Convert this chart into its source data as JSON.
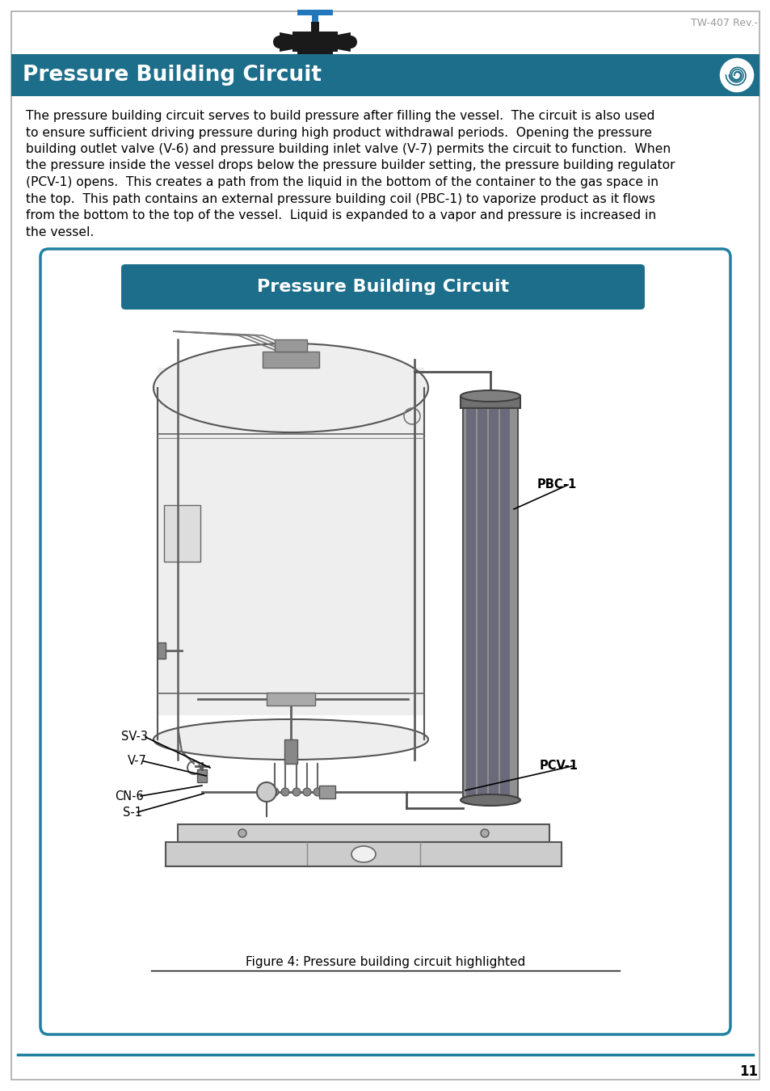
{
  "page_bg": "#ffffff",
  "header_bg": "#1c6e8a",
  "header_text": "Pressure Building Circuit",
  "header_text_color": "#ffffff",
  "header_font_size": 19,
  "top_label": "TW-407 Rev.-",
  "top_label_color": "#999999",
  "body_text_lines": [
    "The pressure building circuit serves to build pressure after filling the vessel.  The circuit is also used",
    "to ensure sufficient driving pressure during high product withdrawal periods.  Opening the pressure",
    "building outlet valve (V-6) and pressure building inlet valve (V-7) permits the circuit to function.  When",
    "the pressure inside the vessel drops below the pressure builder setting, the pressure building regulator",
    "(PCV-1) opens.  This creates a path from the liquid in the bottom of the container to the gas space in",
    "the top.  This path contains an external pressure building coil (PBC-1) to vaporize product as it flows",
    "from the bottom to the top of the vessel.  Liquid is expanded to a vapor and pressure is increased in",
    "the vessel."
  ],
  "body_font_size": 11.2,
  "diagram_title": "Pressure Building Circuit",
  "diagram_title_bg": "#1c6e8a",
  "diagram_title_color": "#ffffff",
  "diagram_title_font_size": 16,
  "figure_caption": "Figure 4: Pressure building circuit highlighted",
  "page_number": "11",
  "border_color": "#2080a0",
  "label_pbc1": "PBC-1",
  "label_pcv1": "PCV-1",
  "label_sv3": "SV-3",
  "label_v7": "V-7",
  "label_cn6": "CN-6",
  "label_s1": "S-1",
  "tank_body_color": "#eeeeee",
  "tank_edge_color": "#555555",
  "coil_color": "#808090",
  "coil_dark": "#606070",
  "pipe_color": "#606070",
  "base_color": "#dddddd"
}
